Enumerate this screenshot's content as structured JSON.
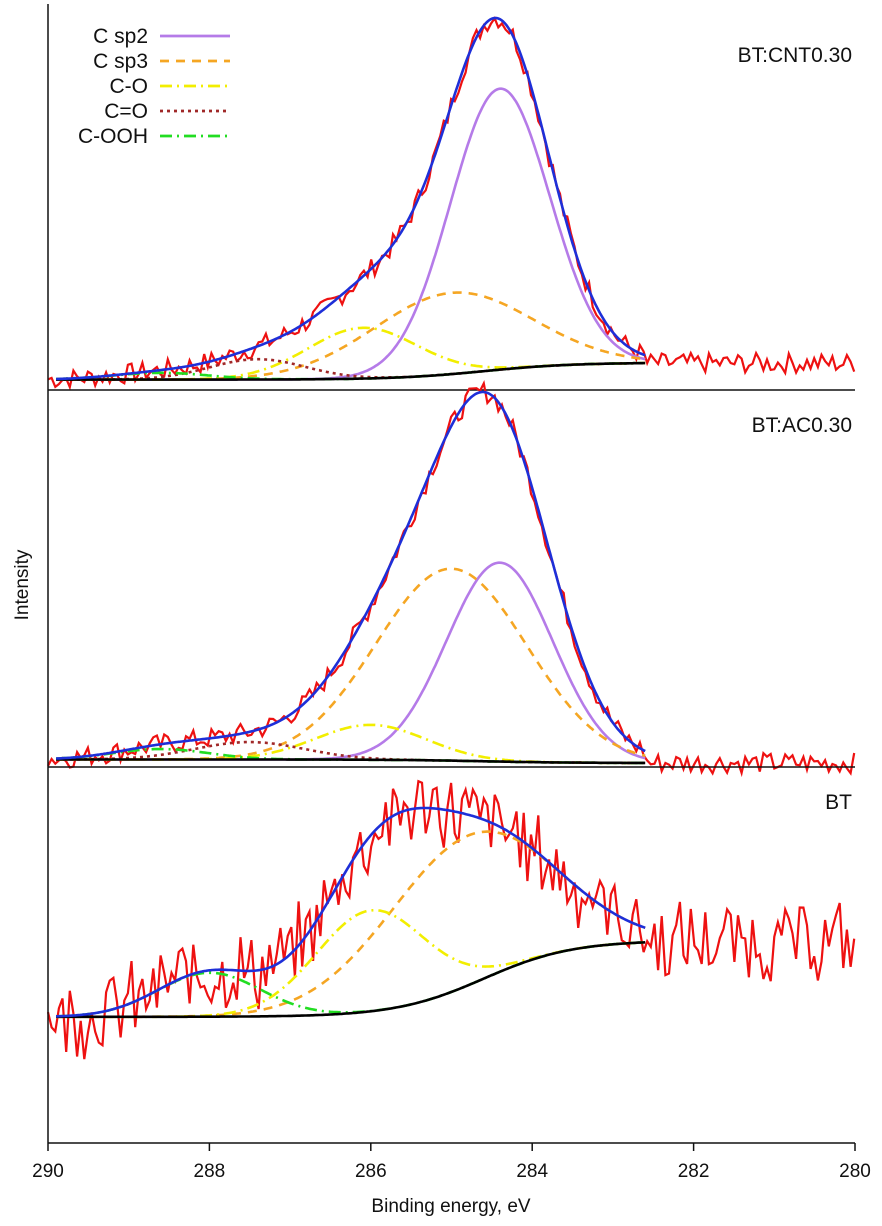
{
  "chart_data": {
    "type": "line",
    "xlabel": "Binding energy, eV",
    "ylabel": "Intensity",
    "xlim": [
      290,
      280
    ],
    "x_reversed": true,
    "x_ticks": [
      "290",
      "288",
      "286",
      "284",
      "282",
      "280"
    ],
    "grid": false,
    "legend": {
      "placement": "top-left",
      "entries": [
        {
          "name": "C sp2",
          "color": "#b57be8",
          "style": "solid"
        },
        {
          "name": "C sp3",
          "color": "#f5a623",
          "style": "dashed"
        },
        {
          "name": "C-O",
          "color": "#f2ee00",
          "style": "dash-dot"
        },
        {
          "name": "C=O",
          "color": "#a02828",
          "style": "dotted"
        },
        {
          "name": "C-OOH",
          "color": "#22dd22",
          "style": "dash-dot"
        }
      ]
    },
    "colors": {
      "raw": "#ee1111",
      "envelope": "#1e2fd8",
      "background": "#000000"
    },
    "panels": [
      {
        "label": "BT:CNT0.30",
        "ylim": [
          0,
          1.0
        ],
        "background": {
          "start": 0.01,
          "end": 0.06,
          "x_end": 282.6
        },
        "envelope": {
          "peak_center": 284.5,
          "peak_height": 1.0
        },
        "components": [
          {
            "name": "C sp2",
            "center": 284.4,
            "height": 0.83,
            "fwhm": 1.45
          },
          {
            "name": "C sp3",
            "center": 285.0,
            "height": 0.24,
            "fwhm": 2.3
          },
          {
            "name": "C-O",
            "center": 286.1,
            "height": 0.15,
            "fwhm": 1.6
          },
          {
            "name": "C=O",
            "center": 287.4,
            "height": 0.06,
            "fwhm": 1.4
          },
          {
            "name": "C-OOH",
            "center": 288.6,
            "height": 0.02,
            "fwhm": 1.4
          }
        ]
      },
      {
        "label": "BT:AC0.30",
        "ylim": [
          0,
          1.0
        ],
        "background": {
          "start": 0.01,
          "end": 0.0,
          "x_end": 282.6
        },
        "envelope": {
          "peak_center": 284.6,
          "peak_height": 1.0
        },
        "components": [
          {
            "name": "C sp2",
            "center": 284.4,
            "height": 0.57,
            "fwhm": 1.55
          },
          {
            "name": "C sp3",
            "center": 285.0,
            "height": 0.55,
            "fwhm": 2.2
          },
          {
            "name": "C-O",
            "center": 286.0,
            "height": 0.1,
            "fwhm": 1.6
          },
          {
            "name": "C=O",
            "center": 287.5,
            "height": 0.05,
            "fwhm": 1.6
          },
          {
            "name": "C-OOH",
            "center": 288.6,
            "height": 0.03,
            "fwhm": 1.4
          }
        ]
      },
      {
        "label": "BT",
        "ylim": [
          0,
          1.0
        ],
        "background": {
          "start": 0.13,
          "end": 0.6,
          "x_end": 282.6
        },
        "envelope": {
          "peak_center": 284.8,
          "peak_height": 1.0
        },
        "components": [
          {
            "name": "C sp3",
            "center": 284.8,
            "height": 0.92,
            "fwhm": 2.4
          },
          {
            "name": "C-O",
            "center": 286.0,
            "height": 0.62,
            "fwhm": 1.6
          },
          {
            "name": "C-OOH",
            "center": 288.0,
            "height": 0.27,
            "fwhm": 1.5
          }
        ]
      }
    ]
  }
}
